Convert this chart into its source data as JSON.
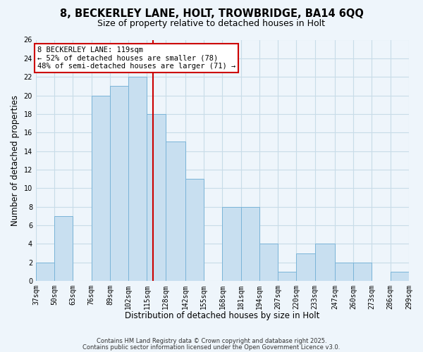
{
  "title1": "8, BECKERLEY LANE, HOLT, TROWBRIDGE, BA14 6QQ",
  "title2": "Size of property relative to detached houses in Holt",
  "xlabel": "Distribution of detached houses by size in Holt",
  "ylabel": "Number of detached properties",
  "bin_edges": [
    37,
    50,
    63,
    76,
    89,
    102,
    115,
    128,
    142,
    155,
    168,
    181,
    194,
    207,
    220,
    233,
    247,
    260,
    273,
    286,
    299
  ],
  "bin_labels": [
    "37sqm",
    "50sqm",
    "63sqm",
    "76sqm",
    "89sqm",
    "102sqm",
    "115sqm",
    "128sqm",
    "142sqm",
    "155sqm",
    "168sqm",
    "181sqm",
    "194sqm",
    "207sqm",
    "220sqm",
    "233sqm",
    "247sqm",
    "260sqm",
    "273sqm",
    "286sqm",
    "299sqm"
  ],
  "counts": [
    2,
    7,
    0,
    20,
    21,
    22,
    18,
    15,
    11,
    0,
    8,
    8,
    4,
    1,
    3,
    4,
    2,
    2,
    0,
    1
  ],
  "bar_color": "#c8dff0",
  "bar_edge_color": "#7ab4d8",
  "property_size": 119,
  "vline_color": "#cc0000",
  "annotation_line1": "8 BECKERLEY LANE: 119sqm",
  "annotation_line2": "← 52% of detached houses are smaller (78)",
  "annotation_line3": "48% of semi-detached houses are larger (71) →",
  "annotation_box_color": "#ffffff",
  "annotation_box_edge": "#cc0000",
  "ylim": [
    0,
    26
  ],
  "yticks": [
    0,
    2,
    4,
    6,
    8,
    10,
    12,
    14,
    16,
    18,
    20,
    22,
    24,
    26
  ],
  "grid_color": "#c8dce8",
  "background_color": "#eef5fb",
  "footer1": "Contains HM Land Registry data © Crown copyright and database right 2025.",
  "footer2": "Contains public sector information licensed under the Open Government Licence v3.0.",
  "title1_fontsize": 10.5,
  "title2_fontsize": 9,
  "axis_label_fontsize": 8.5,
  "tick_fontsize": 7,
  "annotation_fontsize": 7.5,
  "footer_fontsize": 6
}
